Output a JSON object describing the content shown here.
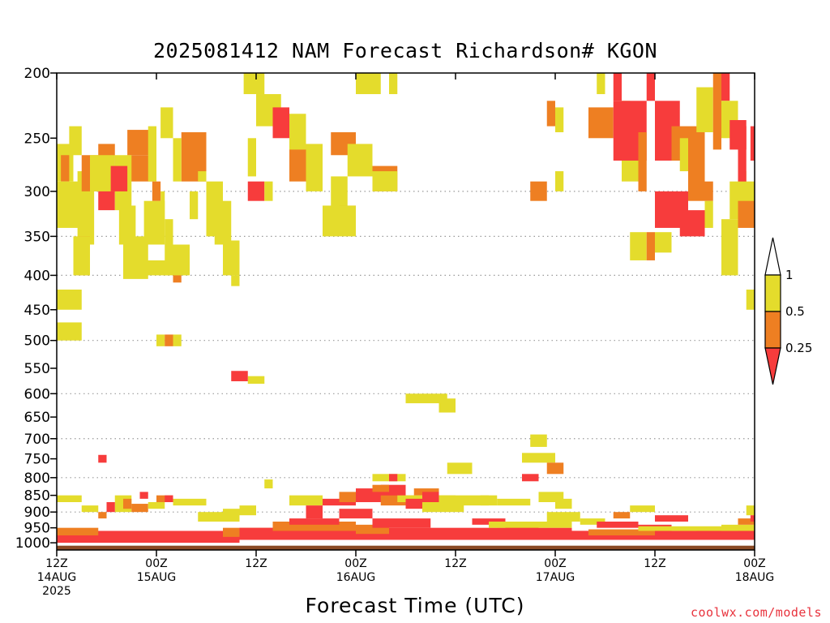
{
  "chart_data": {
    "type": "heatmap",
    "title": "2025081412 NAM Forecast Richardson# KGON",
    "xlabel": "Forecast Time (UTC)",
    "ylabel": "",
    "y_scale": "log-pressure (inverted)",
    "ylim": [
      1025,
      200
    ],
    "y_ticks": [
      "200",
      "250",
      "300",
      "350",
      "400",
      "450",
      "500",
      "550",
      "600",
      "650",
      "700",
      "750",
      "800",
      "850",
      "900",
      "950",
      "1000"
    ],
    "x_ticks": [
      {
        "time": "12Z",
        "date": "14AUG",
        "year": "2025"
      },
      {
        "time": "00Z",
        "date": "15AUG",
        "year": ""
      },
      {
        "time": "12Z",
        "date": "",
        "year": ""
      },
      {
        "time": "00Z",
        "date": "16AUG",
        "year": ""
      },
      {
        "time": "12Z",
        "date": "",
        "year": ""
      },
      {
        "time": "00Z",
        "date": "17AUG",
        "year": ""
      },
      {
        "time": "12Z",
        "date": "",
        "year": ""
      },
      {
        "time": "00Z",
        "date": "18AUG",
        "year": ""
      }
    ],
    "x_range_hours": [
      0,
      84
    ],
    "grid": "dotted horizontal at 300, 350, 400, 500, 600, 700, 800, 900",
    "legend": {
      "placement": "right",
      "labels": [
        "1",
        "0.5",
        "0.25"
      ],
      "bins": [
        {
          "range": "0.5-1",
          "color": "#e4dc2c"
        },
        {
          "range": "0.25-0.5",
          "color": "#ee7f22"
        },
        {
          "range": "<0.25",
          "color": "#f73c3c"
        }
      ]
    },
    "colors": {
      "high": "#e4dc2c",
      "mid": "#ee7f22",
      "low": "#f73c3c",
      "surface": "#8b4a24"
    },
    "surface_pressure": 1010,
    "cells": [
      [
        "y",
        0,
        2,
        255,
        290
      ],
      [
        "o",
        0.5,
        1.5,
        265,
        290
      ],
      [
        "y",
        0,
        3,
        290,
        340
      ],
      [
        "y",
        2.5,
        4.5,
        280,
        360
      ],
      [
        "o",
        3,
        5,
        265,
        300
      ],
      [
        "o",
        2.5,
        4,
        350,
        400
      ],
      [
        "y",
        2,
        4,
        350,
        400
      ],
      [
        "y",
        0,
        3,
        420,
        450
      ],
      [
        "y",
        0,
        3,
        470,
        500
      ],
      [
        "y",
        1.5,
        3,
        240,
        265
      ],
      [
        "o",
        5,
        7,
        255,
        280
      ],
      [
        "r",
        5,
        7,
        290,
        320
      ],
      [
        "y",
        4,
        7,
        265,
        300
      ],
      [
        "o",
        8.5,
        11.5,
        243,
        265
      ],
      [
        "o",
        8.5,
        11.5,
        265,
        290
      ],
      [
        "y",
        7,
        9,
        265,
        320
      ],
      [
        "r",
        6.5,
        8.5,
        275,
        300
      ],
      [
        "y",
        7.5,
        9.5,
        315,
        360
      ],
      [
        "o",
        8.5,
        10.5,
        355,
        400
      ],
      [
        "y",
        8,
        11,
        350,
        405
      ],
      [
        "y",
        10.5,
        13,
        310,
        360
      ],
      [
        "y",
        10.5,
        13.5,
        380,
        400
      ],
      [
        "y",
        12.5,
        14,
        225,
        250
      ],
      [
        "y",
        11,
        12,
        240,
        290
      ],
      [
        "o",
        11.5,
        12.5,
        290,
        310
      ],
      [
        "y",
        12.5,
        13,
        300,
        330
      ],
      [
        "y",
        13,
        14,
        330,
        360
      ],
      [
        "o",
        14,
        15,
        380,
        410
      ],
      [
        "y",
        13,
        16,
        360,
        400
      ],
      [
        "y",
        12,
        13,
        490,
        510
      ],
      [
        "o",
        13,
        14,
        490,
        510
      ],
      [
        "y",
        14,
        15,
        490,
        510
      ],
      [
        "o",
        15,
        18,
        245,
        290
      ],
      [
        "y",
        14,
        15,
        250,
        290
      ],
      [
        "y",
        17,
        18,
        280,
        290
      ],
      [
        "y",
        16,
        17,
        300,
        330
      ],
      [
        "y",
        18,
        20,
        290,
        350
      ],
      [
        "y",
        19,
        21,
        310,
        360
      ],
      [
        "y",
        20,
        22,
        355,
        400
      ],
      [
        "y",
        21,
        22,
        400,
        415
      ],
      [
        "y",
        22.5,
        25,
        200,
        215
      ],
      [
        "y",
        23,
        24,
        250,
        285
      ],
      [
        "r",
        23,
        25,
        290,
        310
      ],
      [
        "y",
        25,
        26,
        290,
        310
      ],
      [
        "y",
        23,
        25,
        565,
        580
      ],
      [
        "r",
        21,
        23,
        555,
        575
      ],
      [
        "y",
        24,
        27,
        215,
        240
      ],
      [
        "r",
        26,
        28,
        225,
        250
      ],
      [
        "y",
        28,
        30,
        230,
        265
      ],
      [
        "o",
        28,
        30,
        260,
        290
      ],
      [
        "y",
        30,
        32,
        255,
        300
      ],
      [
        "o",
        33,
        36,
        245,
        265
      ],
      [
        "y",
        33,
        35,
        285,
        320
      ],
      [
        "o",
        34,
        36,
        315,
        345
      ],
      [
        "y",
        32,
        36,
        315,
        350
      ],
      [
        "y",
        36,
        39,
        200,
        215
      ],
      [
        "y",
        40,
        41,
        200,
        215
      ],
      [
        "y",
        35,
        38,
        255,
        285
      ],
      [
        "o",
        38,
        41,
        275,
        300
      ],
      [
        "y",
        38,
        41,
        280,
        300
      ],
      [
        "y",
        42,
        47,
        600,
        620
      ],
      [
        "y",
        46,
        48,
        610,
        640
      ],
      [
        "y",
        47,
        50,
        760,
        790
      ],
      [
        "y",
        38,
        42,
        790,
        810
      ],
      [
        "r",
        40,
        41,
        790,
        810
      ],
      [
        "y",
        56,
        60,
        735,
        760
      ],
      [
        "o",
        59,
        61,
        760,
        790
      ],
      [
        "y",
        57,
        59,
        690,
        720
      ],
      [
        "r",
        56,
        58,
        790,
        810
      ],
      [
        "o",
        57,
        59,
        290,
        310
      ],
      [
        "o",
        59,
        60,
        220,
        240
      ],
      [
        "y",
        60,
        61,
        225,
        245
      ],
      [
        "y",
        60,
        61,
        280,
        300
      ],
      [
        "y",
        65,
        66,
        200,
        215
      ],
      [
        "r",
        67,
        68,
        200,
        220
      ],
      [
        "y",
        68,
        69,
        220,
        245
      ],
      [
        "o",
        64,
        67,
        225,
        250
      ],
      [
        "r",
        67,
        71,
        220,
        270
      ],
      [
        "y",
        68,
        70,
        270,
        290
      ],
      [
        "o",
        70,
        71,
        245,
        300
      ],
      [
        "r",
        71,
        72,
        200,
        220
      ],
      [
        "y",
        69,
        71,
        345,
        380
      ],
      [
        "o",
        71,
        72,
        345,
        380
      ],
      [
        "y",
        72,
        74,
        345,
        370
      ],
      [
        "r",
        72,
        75,
        220,
        270
      ],
      [
        "o",
        74,
        76,
        240,
        270
      ],
      [
        "y",
        75,
        77,
        250,
        280
      ],
      [
        "o",
        76,
        78,
        240,
        300
      ],
      [
        "y",
        77,
        79,
        210,
        245
      ],
      [
        "o",
        76,
        79,
        290,
        310
      ],
      [
        "r",
        72,
        76,
        300,
        340
      ],
      [
        "r",
        75,
        78,
        320,
        350
      ],
      [
        "y",
        78,
        79,
        310,
        340
      ],
      [
        "o",
        79,
        80,
        200,
        260
      ],
      [
        "r",
        80,
        81,
        200,
        220
      ],
      [
        "y",
        80,
        82,
        220,
        250
      ],
      [
        "r",
        81,
        83,
        235,
        260
      ],
      [
        "y",
        82,
        83,
        280,
        300
      ],
      [
        "r",
        82,
        83,
        240,
        300
      ],
      [
        "y",
        81,
        84,
        290,
        330
      ],
      [
        "y",
        80,
        82,
        330,
        400
      ],
      [
        "o",
        82,
        84,
        310,
        340
      ],
      [
        "y",
        84,
        85,
        350,
        400
      ],
      [
        "y",
        83,
        84,
        420,
        450
      ],
      [
        "r",
        83.5,
        84,
        240,
        270
      ],
      [
        "y",
        0,
        3,
        850,
        870
      ],
      [
        "y",
        3,
        5,
        880,
        900
      ],
      [
        "o",
        5,
        6,
        900,
        920
      ],
      [
        "r",
        5,
        6,
        740,
        760
      ],
      [
        "y",
        7,
        9,
        850,
        900
      ],
      [
        "r",
        6,
        7,
        870,
        900
      ],
      [
        "o",
        8,
        9,
        860,
        890
      ],
      [
        "o",
        9,
        11,
        875,
        900
      ],
      [
        "r",
        10,
        11,
        840,
        860
      ],
      [
        "y",
        11,
        13,
        870,
        890
      ],
      [
        "o",
        12,
        14,
        850,
        870
      ],
      [
        "r",
        13,
        14,
        850,
        870
      ],
      [
        "y",
        14,
        18,
        860,
        880
      ],
      [
        "y",
        17,
        22,
        900,
        930
      ],
      [
        "y",
        20,
        24,
        890,
        910
      ],
      [
        "y",
        22,
        24,
        880,
        900
      ],
      [
        "y",
        25,
        26,
        805,
        830
      ],
      [
        "y",
        28,
        32,
        850,
        880
      ],
      [
        "r",
        30,
        32,
        880,
        920
      ],
      [
        "r",
        32,
        36,
        860,
        880
      ],
      [
        "r",
        34,
        38,
        890,
        920
      ],
      [
        "o",
        34,
        38,
        840,
        870
      ],
      [
        "r",
        36,
        41,
        830,
        870
      ],
      [
        "o",
        39,
        43,
        850,
        880
      ],
      [
        "y",
        41,
        48,
        850,
        870
      ],
      [
        "r",
        42,
        47,
        860,
        890
      ],
      [
        "y",
        44,
        49,
        870,
        900
      ],
      [
        "y",
        46,
        52,
        850,
        880
      ],
      [
        "r",
        39,
        42,
        820,
        850
      ],
      [
        "o",
        38,
        40,
        820,
        840
      ],
      [
        "o",
        43,
        46,
        830,
        850
      ],
      [
        "r",
        44,
        46,
        840,
        870
      ],
      [
        "y",
        51,
        53,
        850,
        880
      ],
      [
        "y",
        53,
        57,
        860,
        880
      ],
      [
        "r",
        50,
        54,
        920,
        940
      ],
      [
        "y",
        53,
        56,
        930,
        950
      ],
      [
        "r",
        54,
        58,
        940,
        960
      ],
      [
        "y",
        58,
        61,
        840,
        870
      ],
      [
        "y",
        59,
        63,
        900,
        930
      ],
      [
        "y",
        60,
        62,
        860,
        890
      ],
      [
        "y",
        63,
        66,
        920,
        940
      ],
      [
        "r",
        65,
        70,
        930,
        950
      ],
      [
        "o",
        67,
        69,
        900,
        920
      ],
      [
        "y",
        69,
        72,
        880,
        900
      ],
      [
        "r",
        72,
        76,
        910,
        930
      ],
      [
        "r",
        70,
        74,
        940,
        960
      ],
      [
        "y",
        75,
        79,
        950,
        970
      ],
      [
        "r",
        77,
        81,
        950,
        980
      ],
      [
        "y",
        80,
        84,
        940,
        970
      ],
      [
        "r",
        82,
        85,
        950,
        980
      ],
      [
        "o",
        82,
        84,
        920,
        940
      ],
      [
        "y",
        83,
        85,
        880,
        910
      ],
      [
        "r",
        83.5,
        85,
        910,
        930
      ],
      [
        "r",
        0,
        85,
        960,
        990
      ],
      [
        "r",
        0,
        22,
        980,
        1000
      ],
      [
        "o",
        0,
        5,
        950,
        975
      ],
      [
        "o",
        20,
        26,
        950,
        980
      ],
      [
        "r",
        22,
        36,
        950,
        990
      ],
      [
        "o",
        26,
        36,
        930,
        960
      ],
      [
        "r",
        28,
        34,
        920,
        940
      ],
      [
        "o",
        36,
        40,
        940,
        970
      ],
      [
        "r",
        38,
        45,
        920,
        950
      ],
      [
        "r",
        40,
        52,
        950,
        990
      ],
      [
        "r",
        52,
        62,
        950,
        990
      ],
      [
        "y",
        52,
        62,
        930,
        950
      ],
      [
        "r",
        62,
        85,
        960,
        990
      ],
      [
        "o",
        64,
        72,
        955,
        975
      ],
      [
        "y",
        70,
        85,
        945,
        960
      ]
    ]
  },
  "credit": "coolwx.com/models"
}
